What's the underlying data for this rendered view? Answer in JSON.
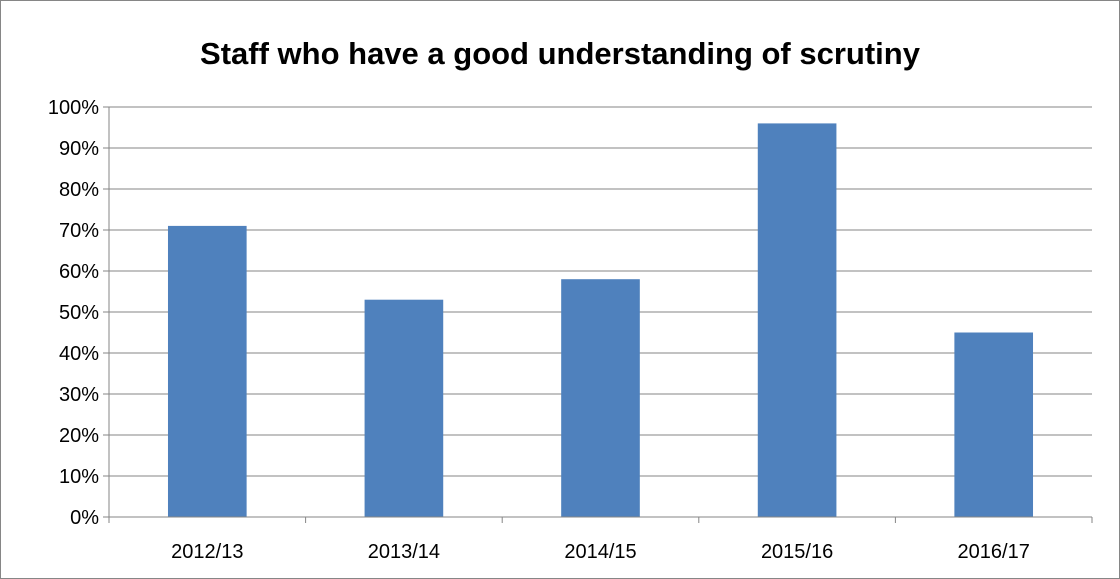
{
  "chart_data": {
    "type": "bar",
    "title": "Staff who have a good understanding of scrutiny",
    "xlabel": "",
    "ylabel": "",
    "categories": [
      "2012/13",
      "2013/14",
      "2014/15",
      "2015/16",
      "2016/17"
    ],
    "values": [
      71,
      53,
      58,
      96,
      45
    ],
    "ylim": [
      0,
      100
    ],
    "y_ticks": [
      0,
      10,
      20,
      30,
      40,
      50,
      60,
      70,
      80,
      90,
      100
    ],
    "y_tick_format": "percent",
    "grid": true,
    "legend": "none",
    "colors": {
      "bar": "#4F81BD",
      "grid": "#868686",
      "axis": "#868686"
    }
  }
}
